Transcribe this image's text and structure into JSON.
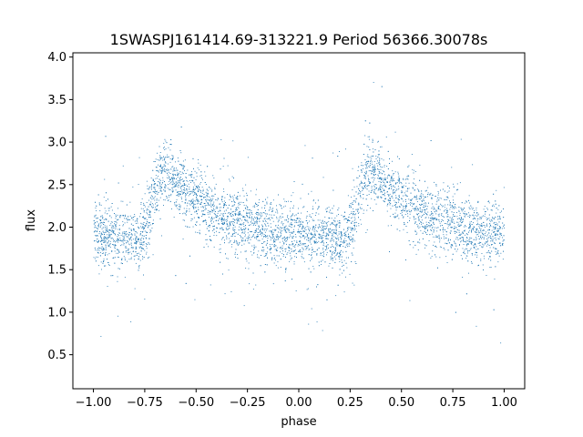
{
  "chart_data": {
    "type": "scatter",
    "title": "1SWASPJ161414.69-313221.9 Period 56366.30078s",
    "xlabel": "phase",
    "ylabel": "flux",
    "xlim": [
      -1.1,
      1.1
    ],
    "ylim": [
      0.1,
      4.05
    ],
    "x_ticks": [
      -1.0,
      -0.75,
      -0.5,
      -0.25,
      0.0,
      0.25,
      0.5,
      0.75,
      1.0
    ],
    "x_tick_labels": [
      "−1.00",
      "−0.75",
      "−0.50",
      "−0.25",
      "0.00",
      "0.25",
      "0.50",
      "0.75",
      "1.00"
    ],
    "y_ticks": [
      0.5,
      1.0,
      1.5,
      2.0,
      2.5,
      3.0,
      3.5,
      4.0
    ],
    "y_tick_labels": [
      "0.5",
      "1.0",
      "1.5",
      "2.0",
      "2.5",
      "3.0",
      "3.5",
      "4.0"
    ],
    "grid": false,
    "marker_color": "#1f77b4",
    "series": [
      {
        "phase_range": [
          -1.0,
          1.0
        ],
        "flux_profile": {
          "phase": [
            0.0,
            0.22,
            0.26,
            0.32,
            0.35,
            0.45,
            0.6,
            0.8,
            0.95,
            1.0
          ],
          "flux": [
            1.92,
            1.85,
            2.1,
            2.6,
            2.7,
            2.4,
            2.15,
            1.98,
            1.92,
            1.92
          ]
        },
        "flux_scatter": 0.18,
        "outlier_range": [
          0.3,
          3.85
        ]
      }
    ]
  }
}
